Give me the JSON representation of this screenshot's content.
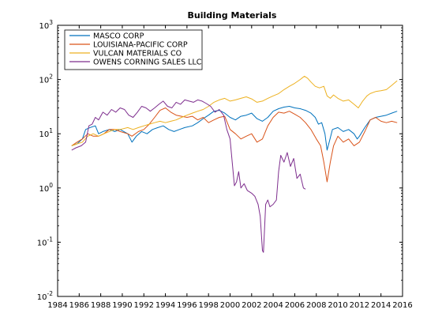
{
  "chart_data": {
    "type": "line",
    "title": "Building Materials",
    "xlabel": "",
    "ylabel": "",
    "y_scale": "log",
    "xlim": [
      1984,
      2016
    ],
    "ylim": [
      0.01,
      1000
    ],
    "grid": false,
    "legend_position": "top-left",
    "x_ticks": [
      1984,
      1986,
      1988,
      1990,
      1992,
      1994,
      1996,
      1998,
      2000,
      2002,
      2004,
      2006,
      2008,
      2010,
      2012,
      2014,
      2016
    ],
    "x_tick_labels": [
      "1984",
      "1986",
      "1988",
      "1990",
      "1992",
      "1994",
      "1996",
      "1998",
      "2000",
      "2002",
      "2004",
      "2006",
      "2008",
      "2010",
      "2012",
      "2014",
      "2016"
    ],
    "y_ticks": [
      0.01,
      0.1,
      1,
      10,
      100,
      1000
    ],
    "y_tick_labels": [
      {
        "base": "10",
        "exp": "-2"
      },
      {
        "base": "10",
        "exp": "-1"
      },
      {
        "base": "10",
        "exp": "0"
      },
      {
        "base": "10",
        "exp": "1"
      },
      {
        "base": "10",
        "exp": "2"
      },
      {
        "base": "10",
        "exp": "3"
      }
    ],
    "series": [
      {
        "name": "MASCO CORP",
        "color": "#0072bd",
        "points": [
          [
            1985.3,
            6
          ],
          [
            1985.8,
            6.5
          ],
          [
            1986.3,
            8
          ],
          [
            1986.6,
            12
          ],
          [
            1987.0,
            13
          ],
          [
            1987.5,
            14
          ],
          [
            1987.8,
            10
          ],
          [
            1988.2,
            11
          ],
          [
            1988.8,
            12
          ],
          [
            1989.3,
            11
          ],
          [
            1989.8,
            12
          ],
          [
            1990.5,
            10
          ],
          [
            1990.9,
            7
          ],
          [
            1991.3,
            9
          ],
          [
            1991.8,
            11
          ],
          [
            1992.3,
            10
          ],
          [
            1992.8,
            12
          ],
          [
            1993.3,
            13
          ],
          [
            1993.8,
            14
          ],
          [
            1994.3,
            12
          ],
          [
            1994.8,
            11
          ],
          [
            1995.3,
            12
          ],
          [
            1995.8,
            13
          ],
          [
            1996.5,
            14
          ],
          [
            1997.0,
            16
          ],
          [
            1997.5,
            19
          ],
          [
            1998.0,
            22
          ],
          [
            1998.5,
            26
          ],
          [
            1999.0,
            27
          ],
          [
            1999.5,
            24
          ],
          [
            2000.0,
            20
          ],
          [
            2000.5,
            18
          ],
          [
            2001.0,
            21
          ],
          [
            2001.5,
            22
          ],
          [
            2002.0,
            24
          ],
          [
            2002.5,
            19
          ],
          [
            2003.0,
            17
          ],
          [
            2003.5,
            20
          ],
          [
            2004.0,
            26
          ],
          [
            2004.5,
            29
          ],
          [
            2005.0,
            31
          ],
          [
            2005.5,
            32
          ],
          [
            2006.0,
            30
          ],
          [
            2006.5,
            29
          ],
          [
            2007.0,
            27
          ],
          [
            2007.5,
            24
          ],
          [
            2007.9,
            20
          ],
          [
            2008.2,
            15
          ],
          [
            2008.5,
            16
          ],
          [
            2008.8,
            10
          ],
          [
            2009.0,
            5
          ],
          [
            2009.2,
            7
          ],
          [
            2009.5,
            12
          ],
          [
            2010.0,
            13
          ],
          [
            2010.5,
            11
          ],
          [
            2011.0,
            12
          ],
          [
            2011.5,
            10
          ],
          [
            2011.8,
            8
          ],
          [
            2012.0,
            9
          ],
          [
            2012.5,
            13
          ],
          [
            2013.0,
            18
          ],
          [
            2013.5,
            20
          ],
          [
            2014.0,
            21
          ],
          [
            2014.5,
            22
          ],
          [
            2015.0,
            24
          ],
          [
            2015.5,
            26
          ]
        ]
      },
      {
        "name": "LOUISIANA-PACIFIC CORP",
        "color": "#d95319",
        "points": [
          [
            1985.3,
            6
          ],
          [
            1985.8,
            7
          ],
          [
            1986.3,
            8
          ],
          [
            1986.8,
            10
          ],
          [
            1987.3,
            9
          ],
          [
            1987.8,
            9
          ],
          [
            1988.3,
            10
          ],
          [
            1988.8,
            12
          ],
          [
            1989.3,
            12
          ],
          [
            1989.8,
            11
          ],
          [
            1990.5,
            10
          ],
          [
            1990.9,
            9
          ],
          [
            1991.5,
            11
          ],
          [
            1992.0,
            12
          ],
          [
            1992.5,
            15
          ],
          [
            1993.0,
            20
          ],
          [
            1993.5,
            27
          ],
          [
            1994.0,
            30
          ],
          [
            1994.5,
            25
          ],
          [
            1995.0,
            22
          ],
          [
            1995.5,
            21
          ],
          [
            1996.0,
            20
          ],
          [
            1996.5,
            21
          ],
          [
            1997.0,
            18
          ],
          [
            1997.5,
            20
          ],
          [
            1998.0,
            16
          ],
          [
            1998.5,
            18
          ],
          [
            1999.0,
            20
          ],
          [
            1999.5,
            21
          ],
          [
            2000.0,
            12
          ],
          [
            2000.5,
            10
          ],
          [
            2001.0,
            8
          ],
          [
            2001.5,
            9
          ],
          [
            2002.0,
            10
          ],
          [
            2002.5,
            7
          ],
          [
            2003.0,
            8
          ],
          [
            2003.5,
            14
          ],
          [
            2004.0,
            20
          ],
          [
            2004.5,
            25
          ],
          [
            2005.0,
            24
          ],
          [
            2005.5,
            26
          ],
          [
            2006.0,
            23
          ],
          [
            2006.5,
            20
          ],
          [
            2007.0,
            16
          ],
          [
            2007.5,
            12
          ],
          [
            2008.0,
            8
          ],
          [
            2008.4,
            6
          ],
          [
            2008.7,
            3
          ],
          [
            2009.0,
            1.3
          ],
          [
            2009.3,
            3
          ],
          [
            2009.6,
            6
          ],
          [
            2010.0,
            9
          ],
          [
            2010.5,
            7
          ],
          [
            2011.0,
            8
          ],
          [
            2011.5,
            6
          ],
          [
            2012.0,
            7
          ],
          [
            2012.5,
            11
          ],
          [
            2013.0,
            18
          ],
          [
            2013.5,
            20
          ],
          [
            2014.0,
            17
          ],
          [
            2014.5,
            16
          ],
          [
            2015.0,
            17
          ],
          [
            2015.5,
            16
          ]
        ]
      },
      {
        "name": "VULCAN MATERIALS CO",
        "color": "#edb120",
        "points": [
          [
            1985.3,
            6
          ],
          [
            1985.8,
            6.5
          ],
          [
            1986.3,
            7
          ],
          [
            1986.8,
            9
          ],
          [
            1987.3,
            10
          ],
          [
            1987.8,
            9
          ],
          [
            1988.3,
            10
          ],
          [
            1988.8,
            11
          ],
          [
            1989.3,
            12
          ],
          [
            1989.8,
            12
          ],
          [
            1990.5,
            13
          ],
          [
            1991.0,
            12
          ],
          [
            1991.5,
            13
          ],
          [
            1992.0,
            14
          ],
          [
            1992.5,
            15
          ],
          [
            1993.0,
            16
          ],
          [
            1993.5,
            17
          ],
          [
            1994.0,
            16
          ],
          [
            1994.5,
            17
          ],
          [
            1995.0,
            18
          ],
          [
            1995.5,
            20
          ],
          [
            1996.0,
            22
          ],
          [
            1996.5,
            24
          ],
          [
            1997.0,
            26
          ],
          [
            1997.5,
            28
          ],
          [
            1998.0,
            32
          ],
          [
            1998.5,
            38
          ],
          [
            1999.0,
            42
          ],
          [
            1999.5,
            45
          ],
          [
            2000.0,
            40
          ],
          [
            2000.5,
            42
          ],
          [
            2001.0,
            45
          ],
          [
            2001.5,
            48
          ],
          [
            2002.0,
            44
          ],
          [
            2002.5,
            38
          ],
          [
            2003.0,
            40
          ],
          [
            2003.5,
            45
          ],
          [
            2004.0,
            50
          ],
          [
            2004.5,
            55
          ],
          [
            2005.0,
            65
          ],
          [
            2005.5,
            75
          ],
          [
            2006.0,
            85
          ],
          [
            2006.5,
            100
          ],
          [
            2006.9,
            115
          ],
          [
            2007.2,
            105
          ],
          [
            2007.5,
            90
          ],
          [
            2007.9,
            75
          ],
          [
            2008.3,
            70
          ],
          [
            2008.7,
            75
          ],
          [
            2009.0,
            50
          ],
          [
            2009.3,
            45
          ],
          [
            2009.6,
            52
          ],
          [
            2010.0,
            45
          ],
          [
            2010.5,
            40
          ],
          [
            2011.0,
            42
          ],
          [
            2011.5,
            35
          ],
          [
            2011.9,
            30
          ],
          [
            2012.3,
            40
          ],
          [
            2012.7,
            50
          ],
          [
            2013.0,
            55
          ],
          [
            2013.5,
            60
          ],
          [
            2014.0,
            62
          ],
          [
            2014.5,
            65
          ],
          [
            2015.0,
            78
          ],
          [
            2015.5,
            95
          ]
        ]
      },
      {
        "name": "OWENS CORNING SALES LLC",
        "color": "#7e2f8e",
        "points": [
          [
            1985.3,
            5
          ],
          [
            1985.7,
            5.5
          ],
          [
            1986.2,
            6
          ],
          [
            1986.6,
            7
          ],
          [
            1986.9,
            14
          ],
          [
            1987.2,
            15
          ],
          [
            1987.5,
            20
          ],
          [
            1987.8,
            18
          ],
          [
            1988.2,
            25
          ],
          [
            1988.6,
            22
          ],
          [
            1989.0,
            28
          ],
          [
            1989.4,
            25
          ],
          [
            1989.8,
            30
          ],
          [
            1990.2,
            28
          ],
          [
            1990.6,
            22
          ],
          [
            1991.0,
            20
          ],
          [
            1991.4,
            25
          ],
          [
            1991.8,
            32
          ],
          [
            1992.2,
            30
          ],
          [
            1992.6,
            26
          ],
          [
            1993.0,
            30
          ],
          [
            1993.4,
            35
          ],
          [
            1993.8,
            40
          ],
          [
            1994.2,
            32
          ],
          [
            1994.6,
            30
          ],
          [
            1995.0,
            38
          ],
          [
            1995.4,
            35
          ],
          [
            1995.8,
            42
          ],
          [
            1996.2,
            40
          ],
          [
            1996.6,
            38
          ],
          [
            1997.0,
            42
          ],
          [
            1997.4,
            40
          ],
          [
            1997.8,
            36
          ],
          [
            1998.2,
            32
          ],
          [
            1998.6,
            25
          ],
          [
            1999.0,
            28
          ],
          [
            1999.4,
            22
          ],
          [
            1999.7,
            12
          ],
          [
            2000.0,
            8
          ],
          [
            2000.2,
            3
          ],
          [
            2000.4,
            1.1
          ],
          [
            2000.6,
            1.3
          ],
          [
            2000.8,
            2
          ],
          [
            2001.0,
            1.0
          ],
          [
            2001.3,
            1.2
          ],
          [
            2001.6,
            0.9
          ],
          [
            2002.0,
            0.8
          ],
          [
            2002.3,
            0.7
          ],
          [
            2002.6,
            0.5
          ],
          [
            2002.8,
            0.3
          ],
          [
            2003.0,
            0.07
          ],
          [
            2003.1,
            0.065
          ],
          [
            2003.3,
            0.5
          ],
          [
            2003.5,
            0.6
          ],
          [
            2003.7,
            0.45
          ],
          [
            2004.0,
            0.5
          ],
          [
            2004.3,
            0.6
          ],
          [
            2004.5,
            2
          ],
          [
            2004.7,
            4
          ],
          [
            2005.0,
            3
          ],
          [
            2005.3,
            4.5
          ],
          [
            2005.6,
            2.5
          ],
          [
            2005.9,
            3.5
          ],
          [
            2006.2,
            1.5
          ],
          [
            2006.5,
            1.8
          ],
          [
            2006.8,
            1.0
          ],
          [
            2007.0,
            0.95
          ]
        ]
      }
    ]
  }
}
